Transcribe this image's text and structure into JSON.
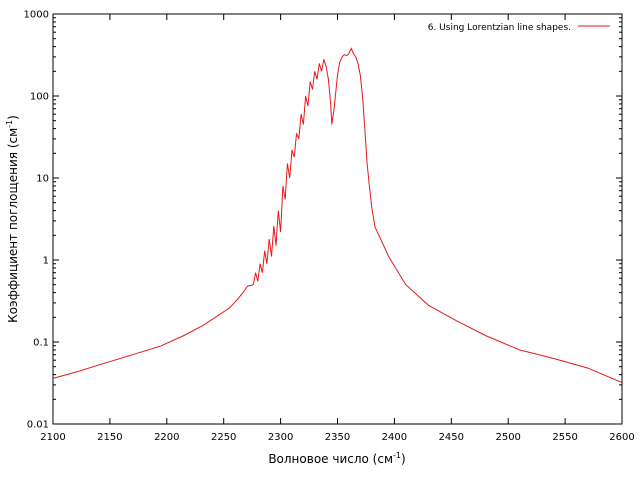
{
  "chart_data": {
    "type": "line",
    "xlabel": {
      "text": "Волновое число (см",
      "sup": "-1",
      "tail": ")"
    },
    "ylabel": {
      "text": "Коэффициент поглощения (см",
      "sup": "-1",
      "tail": ")"
    },
    "x_scale": "linear",
    "y_scale": "log",
    "xlim": [
      2100,
      2600
    ],
    "ylim": [
      0.01,
      1000
    ],
    "x_ticks": [
      "2100",
      "2150",
      "2200",
      "2250",
      "2300",
      "2350",
      "2400",
      "2450",
      "2500",
      "2550",
      "2600"
    ],
    "y_ticks": [
      "0.01",
      "0.1",
      "1",
      "10",
      "100",
      "1000"
    ],
    "grid": false,
    "legend_position": "top-right",
    "line_color": "#e41a1c",
    "series": [
      {
        "name": "6. Using Lorentzian line shapes.",
        "x": [
          2100,
          2120,
          2145,
          2170,
          2195,
          2215,
          2232,
          2245,
          2255,
          2262,
          2268,
          2271,
          2274,
          2276,
          2278,
          2280,
          2282,
          2284,
          2286,
          2288,
          2290,
          2292,
          2294,
          2296,
          2298,
          2300,
          2302,
          2304,
          2306,
          2308,
          2310,
          2312,
          2314,
          2316,
          2318,
          2320,
          2322,
          2324,
          2326,
          2328,
          2330,
          2332,
          2334,
          2336,
          2338,
          2340,
          2342,
          2344,
          2345,
          2347,
          2350,
          2352,
          2354,
          2356,
          2358,
          2360,
          2362,
          2364,
          2366,
          2368,
          2370,
          2372,
          2374,
          2376,
          2378,
          2380,
          2383,
          2388,
          2395,
          2410,
          2430,
          2455,
          2480,
          2510,
          2540,
          2570,
          2600
        ],
        "y": [
          0.036,
          0.043,
          0.055,
          0.07,
          0.09,
          0.12,
          0.16,
          0.21,
          0.26,
          0.33,
          0.42,
          0.48,
          0.49,
          0.5,
          0.7,
          0.55,
          0.9,
          0.7,
          1.3,
          0.9,
          1.8,
          1.1,
          2.6,
          1.5,
          4.0,
          2.2,
          8.0,
          5.5,
          15,
          10,
          22,
          18,
          35,
          30,
          60,
          45,
          100,
          75,
          150,
          120,
          200,
          160,
          250,
          200,
          280,
          230,
          160,
          80,
          45,
          70,
          180,
          260,
          300,
          320,
          310,
          330,
          380,
          330,
          300,
          250,
          180,
          100,
          40,
          15,
          8,
          4.5,
          2.5,
          1.8,
          1.1,
          0.5,
          0.28,
          0.18,
          0.12,
          0.08,
          0.063,
          0.048,
          0.032
        ]
      }
    ]
  }
}
